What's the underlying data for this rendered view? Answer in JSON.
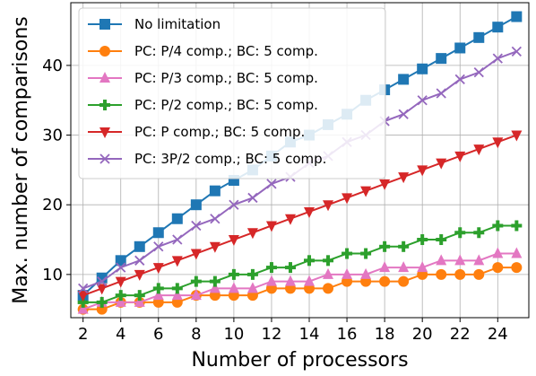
{
  "chart_data": {
    "type": "line",
    "title": "",
    "xlabel": "Number of processors",
    "ylabel": "Max. number of comparisons",
    "xlim": [
      1.35,
      25.65
    ],
    "ylim": [
      3.8,
      49
    ],
    "xticks": [
      2,
      4,
      6,
      8,
      10,
      12,
      14,
      16,
      18,
      20,
      22,
      24
    ],
    "yticks": [
      10,
      20,
      30,
      40
    ],
    "grid": true,
    "legend_position": "top-left",
    "x": [
      2,
      3,
      4,
      5,
      6,
      7,
      8,
      9,
      10,
      11,
      12,
      13,
      14,
      15,
      16,
      17,
      18,
      19,
      20,
      21,
      22,
      23,
      24,
      25
    ],
    "series": [
      {
        "name": "No limitation",
        "color": "#1f77b4",
        "marker": "square",
        "values": [
          7,
          9.5,
          12,
          14,
          16,
          18,
          20,
          22,
          23.5,
          25,
          27,
          29,
          30,
          31.5,
          33,
          35,
          36.5,
          38,
          39.5,
          41,
          42.5,
          44,
          45.5,
          47
        ]
      },
      {
        "name": "PC: P/4 comp.; BC: 5 comp.",
        "color": "#ff7f0e",
        "marker": "circle",
        "values": [
          5,
          5,
          6,
          6,
          6,
          6,
          7,
          7,
          7,
          7,
          8,
          8,
          8,
          8,
          9,
          9,
          9,
          9,
          10,
          10,
          10,
          10,
          11,
          11
        ]
      },
      {
        "name": "PC: P/3 comp.; BC: 5 comp.",
        "color": "#e377c2",
        "marker": "triangle-up",
        "values": [
          5,
          6,
          6,
          6,
          7,
          7,
          7,
          8,
          8,
          8,
          9,
          9,
          9,
          10,
          10,
          10,
          11,
          11,
          11,
          12,
          12,
          12,
          13,
          13
        ]
      },
      {
        "name": "PC: P/2 comp.; BC: 5 comp.",
        "color": "#2ca02c",
        "marker": "plus",
        "values": [
          6,
          6,
          7,
          7,
          8,
          8,
          9,
          9,
          10,
          10,
          11,
          11,
          12,
          12,
          13,
          13,
          14,
          14,
          15,
          15,
          16,
          16,
          17,
          17
        ]
      },
      {
        "name": "PC: P comp.; BC: 5 comp.",
        "color": "#d62728",
        "marker": "triangle-down",
        "values": [
          7,
          8,
          9,
          10,
          11,
          12,
          13,
          14,
          15,
          16,
          17,
          18,
          19,
          20,
          21,
          22,
          23,
          24,
          25,
          26,
          27,
          28,
          29,
          30
        ]
      },
      {
        "name": "PC: 3P/2 comp.; BC: 5 comp.",
        "color": "#9467bd",
        "marker": "x",
        "values": [
          8,
          9,
          11,
          12,
          14,
          15,
          17,
          18,
          20,
          21,
          23,
          24,
          26,
          27,
          29,
          30,
          32,
          33,
          35,
          36,
          38,
          39,
          41,
          42
        ]
      }
    ]
  }
}
